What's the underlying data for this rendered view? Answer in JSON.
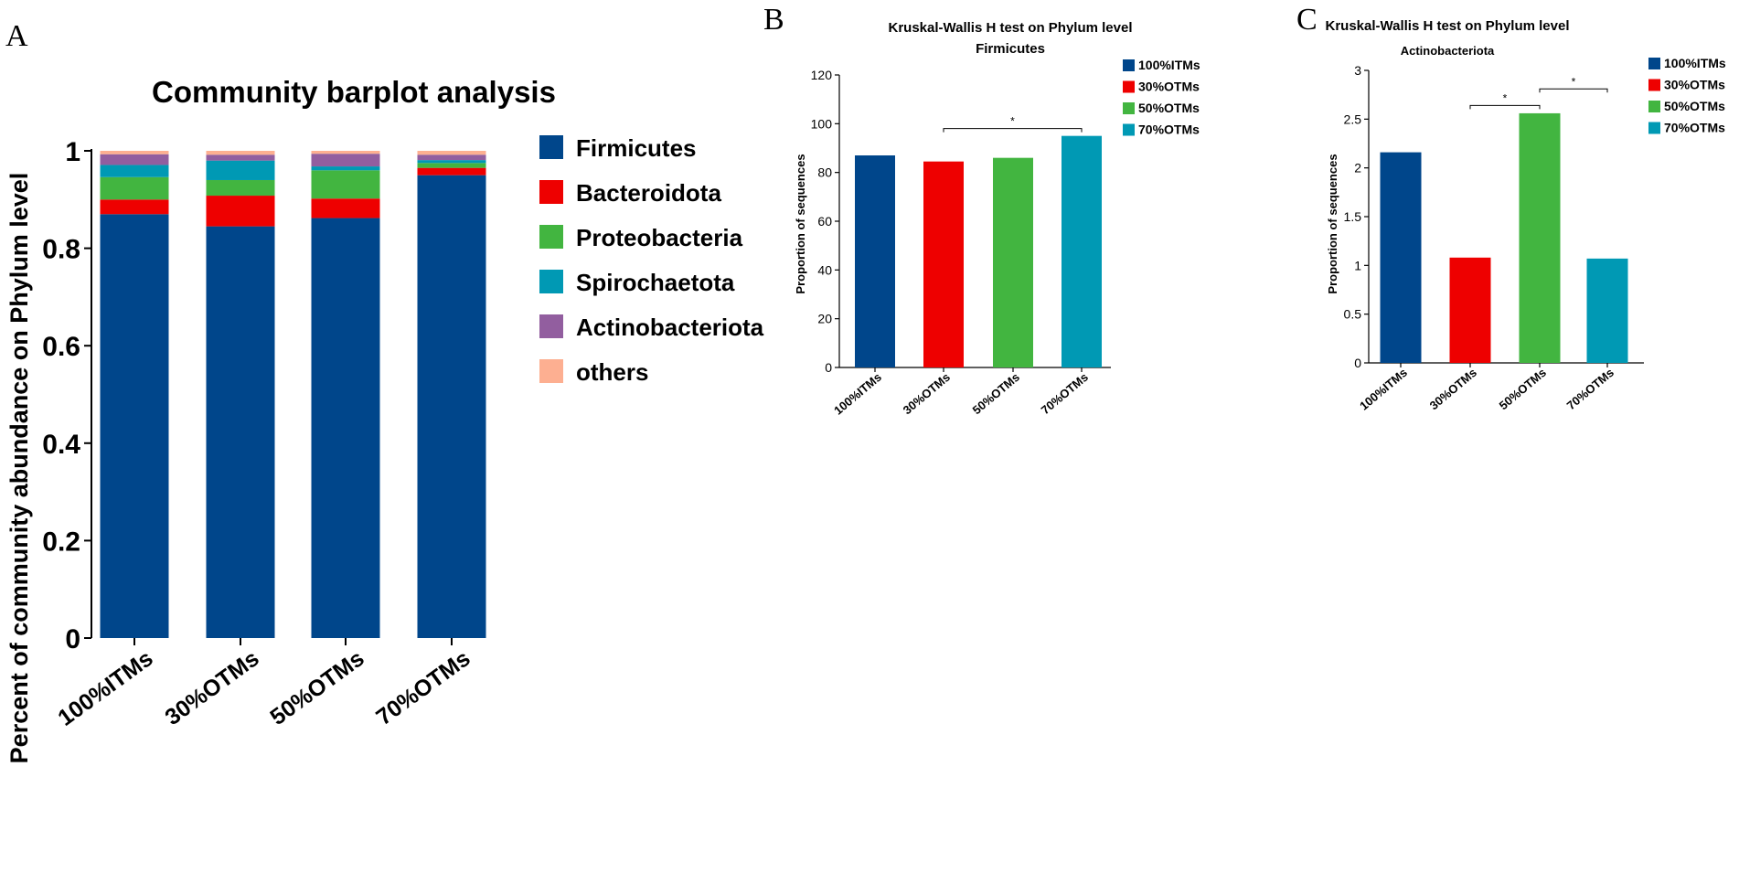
{
  "panels": {
    "A": "A",
    "B": "B",
    "C": "C"
  },
  "colors": {
    "Firmicutes": "#00468b",
    "Bacteroidota": "#ee0000",
    "Proteobacteria": "#42b540",
    "Spirochaetota": "#0099b4",
    "Actinobacteriota": "#925e9f",
    "others": "#fdaf91"
  },
  "chart_data": [
    {
      "type": "bar",
      "stacked": true,
      "title": "Community barplot analysis",
      "xlabel": "",
      "ylabel": "Percent of community abundance on Phylum level",
      "ylim": [
        0,
        1
      ],
      "yticks": [
        0,
        0.2,
        0.4,
        0.6,
        0.8,
        1
      ],
      "yticklabels": [
        "0",
        "0.2",
        "0.4",
        "0.6",
        "0.8",
        "1"
      ],
      "categories": [
        "100%ITMs",
        "30%OTMs",
        "50%OTMs",
        "70%OTMs"
      ],
      "series": [
        {
          "name": "Firmicutes",
          "values": [
            0.87,
            0.845,
            0.862,
            0.95
          ]
        },
        {
          "name": "Bacteroidota",
          "values": [
            0.03,
            0.063,
            0.04,
            0.015
          ]
        },
        {
          "name": "Proteobacteria",
          "values": [
            0.046,
            0.032,
            0.058,
            0.01
          ]
        },
        {
          "name": "Spirochaetota",
          "values": [
            0.025,
            0.04,
            0.008,
            0.006
          ]
        },
        {
          "name": "Actinobacteriota",
          "values": [
            0.022,
            0.012,
            0.026,
            0.011
          ]
        },
        {
          "name": "others",
          "values": [
            0.007,
            0.008,
            0.006,
            0.008
          ]
        }
      ],
      "legend": [
        "Firmicutes",
        "Bacteroidota",
        "Proteobacteria",
        "Spirochaetota",
        "Actinobacteriota",
        "others"
      ]
    },
    {
      "type": "bar",
      "title": "Kruskal-Wallis H test on Phylum level",
      "subtitle": "Firmicutes",
      "xlabel": "",
      "ylabel": "Proportion of sequences",
      "ylim": [
        0,
        120
      ],
      "yticks": [
        0,
        20,
        40,
        60,
        80,
        100,
        120
      ],
      "yticklabels": [
        "0",
        "20",
        "40",
        "60",
        "80",
        "100",
        "120"
      ],
      "categories": [
        "100%ITMs",
        "30%OTMs",
        "50%OTMs",
        "70%OTMs"
      ],
      "values": [
        87,
        84.5,
        86,
        95
      ],
      "legend": [
        "100%ITMs",
        "30%OTMs",
        "50%OTMs",
        "70%OTMs"
      ],
      "significance": [
        {
          "from": 1,
          "to": 3,
          "label": "*",
          "y": 98
        }
      ]
    },
    {
      "type": "bar",
      "title": "Kruskal-Wallis H test on Phylum level",
      "subtitle": "Actinobacteriota",
      "xlabel": "",
      "ylabel": "Proportion of sequences",
      "ylim": [
        0,
        3
      ],
      "yticks": [
        0,
        0.5,
        1,
        1.5,
        2,
        2.5,
        3
      ],
      "yticklabels": [
        "0",
        "0.5",
        "1",
        "1.5",
        "2",
        "2.5",
        "3"
      ],
      "categories": [
        "100%ITMs",
        "30%OTMs",
        "50%OTMs",
        "70%OTMs"
      ],
      "values": [
        2.16,
        1.08,
        2.56,
        1.07
      ],
      "legend": [
        "100%ITMs",
        "30%OTMs",
        "50%OTMs",
        "70%OTMs"
      ],
      "significance": [
        {
          "from": 1,
          "to": 2,
          "label": "*",
          "y": 2.64
        },
        {
          "from": 2,
          "to": 3,
          "label": "*",
          "y": 2.81
        }
      ]
    }
  ]
}
